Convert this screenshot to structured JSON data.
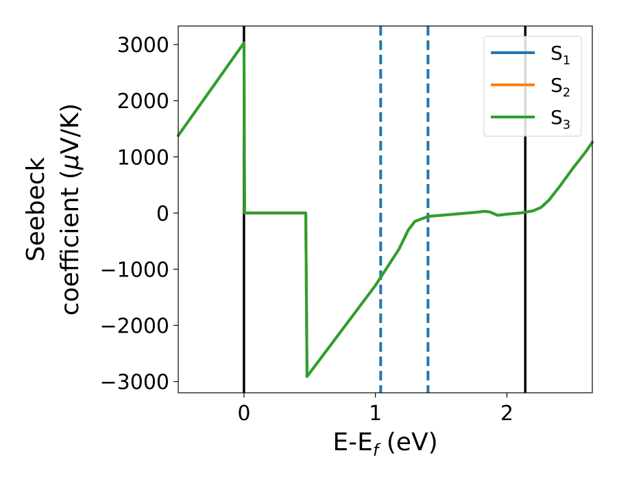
{
  "chart_data": {
    "type": "line",
    "title": "",
    "xlabel": {
      "main": "E-E",
      "sub": "f",
      "rest": " (eV)"
    },
    "ylabel": {
      "line1": "Seebeck",
      "line2_pre": "coefficient  (",
      "line2_mu": "μ",
      "line2_post": "V/K)"
    },
    "xlim": [
      -0.5,
      2.65
    ],
    "ylim": [
      -3200,
      3330
    ],
    "xticks": [
      {
        "value": 0,
        "label": "0"
      },
      {
        "value": 1,
        "label": "1"
      },
      {
        "value": 2,
        "label": "2"
      }
    ],
    "yticks": [
      {
        "value": 3000,
        "label": "3000"
      },
      {
        "value": 2000,
        "label": "2000"
      },
      {
        "value": 1000,
        "label": "1000"
      },
      {
        "value": 0,
        "label": "0"
      },
      {
        "value": -1000,
        "label": "−1000"
      },
      {
        "value": -2000,
        "label": "−2000"
      },
      {
        "value": -3000,
        "label": "−3000"
      }
    ],
    "grid": false,
    "legend_position": "top-right",
    "series": [
      {
        "name": {
          "main": "S",
          "sub": "1"
        },
        "color": "#1f77b4",
        "points": [
          [
            -0.5,
            1380
          ],
          [
            0.0,
            3030
          ],
          [
            0.005,
            0
          ],
          [
            0.47,
            0
          ],
          [
            0.48,
            -2910
          ],
          [
            1.0,
            -1290
          ],
          [
            1.18,
            -640
          ],
          [
            1.25,
            -300
          ],
          [
            1.3,
            -150
          ],
          [
            1.4,
            -60
          ],
          [
            1.6,
            -20
          ],
          [
            1.75,
            10
          ],
          [
            1.83,
            30
          ],
          [
            1.87,
            20
          ],
          [
            1.93,
            -40
          ],
          [
            2.0,
            -20
          ],
          [
            2.1,
            0
          ],
          [
            2.2,
            40
          ],
          [
            2.26,
            100
          ],
          [
            2.32,
            230
          ],
          [
            2.4,
            470
          ],
          [
            2.5,
            790
          ],
          [
            2.6,
            1090
          ],
          [
            2.65,
            1260
          ]
        ]
      },
      {
        "name": {
          "main": "S",
          "sub": "2"
        },
        "color": "#ff7f0e",
        "points": [
          [
            -0.5,
            1380
          ],
          [
            0.0,
            3030
          ],
          [
            0.005,
            0
          ],
          [
            0.47,
            0
          ],
          [
            0.48,
            -2910
          ],
          [
            1.0,
            -1290
          ],
          [
            1.18,
            -640
          ],
          [
            1.25,
            -300
          ],
          [
            1.3,
            -150
          ],
          [
            1.4,
            -60
          ],
          [
            1.6,
            -20
          ],
          [
            1.75,
            10
          ],
          [
            1.83,
            30
          ],
          [
            1.87,
            20
          ],
          [
            1.93,
            -40
          ],
          [
            2.0,
            -20
          ],
          [
            2.1,
            0
          ],
          [
            2.2,
            40
          ],
          [
            2.26,
            100
          ],
          [
            2.32,
            230
          ],
          [
            2.4,
            470
          ],
          [
            2.5,
            790
          ],
          [
            2.6,
            1090
          ],
          [
            2.65,
            1260
          ]
        ]
      },
      {
        "name": {
          "main": "S",
          "sub": "3"
        },
        "color": "#2ca02c",
        "points": [
          [
            -0.5,
            1380
          ],
          [
            0.0,
            3030
          ],
          [
            0.005,
            0
          ],
          [
            0.47,
            0
          ],
          [
            0.48,
            -2910
          ],
          [
            1.0,
            -1290
          ],
          [
            1.18,
            -640
          ],
          [
            1.25,
            -300
          ],
          [
            1.3,
            -150
          ],
          [
            1.4,
            -60
          ],
          [
            1.6,
            -20
          ],
          [
            1.75,
            10
          ],
          [
            1.83,
            30
          ],
          [
            1.87,
            20
          ],
          [
            1.93,
            -40
          ],
          [
            2.0,
            -20
          ],
          [
            2.1,
            0
          ],
          [
            2.2,
            40
          ],
          [
            2.26,
            100
          ],
          [
            2.32,
            230
          ],
          [
            2.4,
            470
          ],
          [
            2.5,
            790
          ],
          [
            2.6,
            1090
          ],
          [
            2.65,
            1260
          ]
        ]
      }
    ],
    "vlines": [
      {
        "x": 0.0,
        "style": "solid",
        "color": "#000000"
      },
      {
        "x": 1.04,
        "style": "dashed",
        "color": "#1f77b4"
      },
      {
        "x": 1.4,
        "style": "dashed",
        "color": "#1f77b4"
      },
      {
        "x": 2.14,
        "style": "solid",
        "color": "#000000"
      }
    ]
  }
}
